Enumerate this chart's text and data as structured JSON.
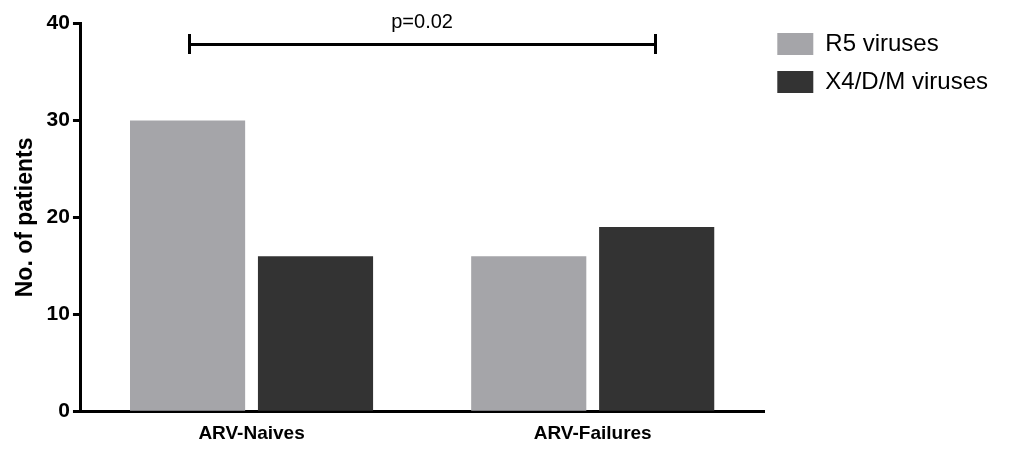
{
  "chart_data": {
    "type": "bar",
    "ylabel": "No. of patients",
    "categories": [
      "ARV-Naives",
      "ARV-Failures"
    ],
    "series": [
      {
        "name": "R5 viruses",
        "color": "#a5a5a9",
        "values": [
          30,
          16
        ]
      },
      {
        "name": "X4/D/M viruses",
        "color": "#333333",
        "values": [
          16,
          19
        ]
      }
    ],
    "ylim": [
      0,
      40
    ],
    "yticks": [
      0,
      10,
      20,
      30,
      40
    ],
    "grid": false,
    "legend": "top right",
    "annotations": [
      "p=0.02"
    ]
  }
}
